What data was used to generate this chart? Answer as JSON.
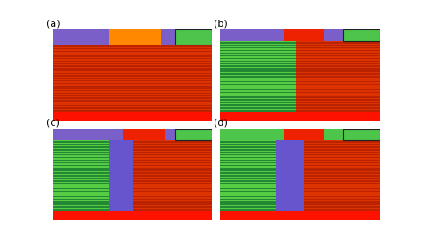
{
  "figsize": [
    4.74,
    2.78
  ],
  "dpi": 100,
  "bg_color": "#ffffff",
  "colors": {
    "purple": "#7B5FC8",
    "orange": "#FF8800",
    "green_top": "#4DC44A",
    "bright_red": "#EE2200",
    "stripe_green1": "#55CC44",
    "stripe_green2": "#228833",
    "stripe_red1": "#DD3300",
    "stripe_red2": "#BB2200",
    "stripe_purple1": "#7766CC",
    "stripe_purple2": "#5544AA",
    "blue_purple": "#6655CC",
    "bottom_red": "#FF1100",
    "dark_line": "#993300"
  },
  "n_stripes": 55,
  "panels": [
    "(a)",
    "(b)",
    "(c)",
    "(d)"
  ]
}
